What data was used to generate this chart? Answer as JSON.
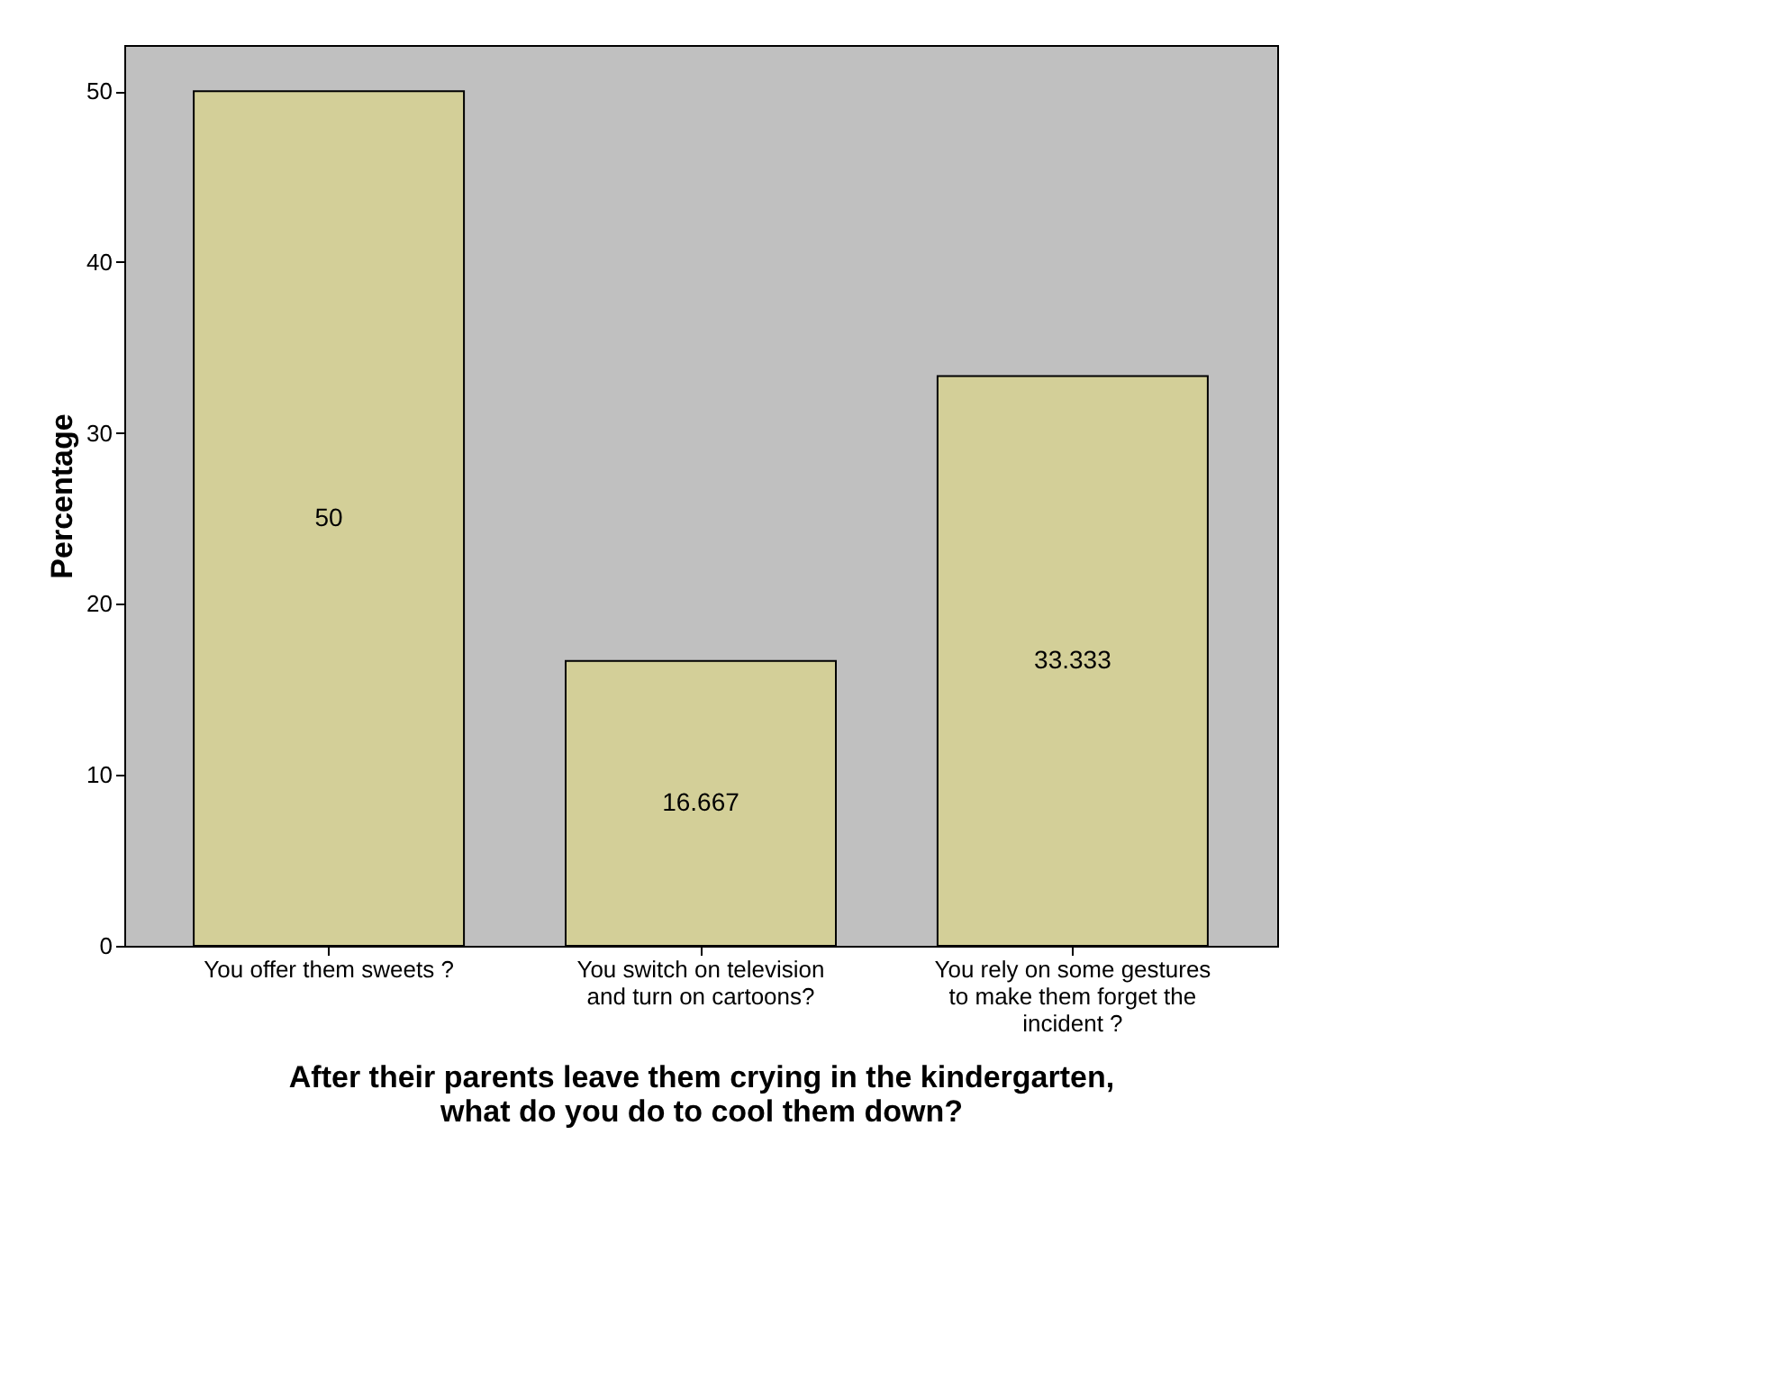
{
  "chart_data": {
    "type": "bar",
    "xlabel": "After their parents leave  them crying in the kindergarten, what do you do to cool them down?",
    "ylabel": "Percentage",
    "categories": [
      "You offer them sweets ?",
      "You switch  on television and turn  on  cartoons?",
      "You rely on some gestures to make them forget the incident ?"
    ],
    "values": [
      50,
      16.667,
      33.333
    ],
    "color": "#d3cf98",
    "data_labels": true,
    "ylim": [
      0,
      52.7
    ],
    "yticks": [
      0,
      10,
      20,
      30,
      40,
      50
    ],
    "grid": false
  }
}
